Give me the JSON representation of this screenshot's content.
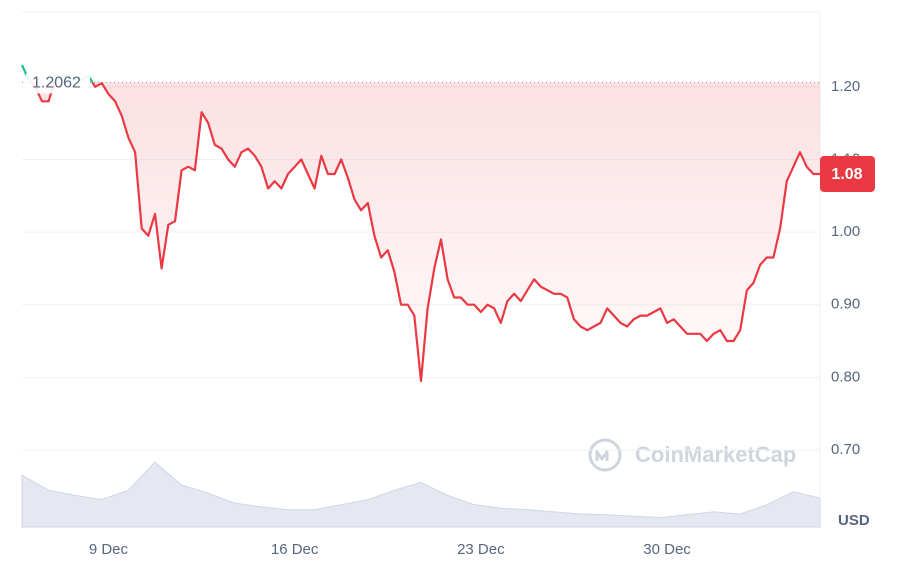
{
  "chart_data": {
    "type": "line",
    "series": [
      {
        "color": "#ea3943",
        "up_color": "#16c784",
        "values": [
          1.23,
          1.21,
          1.2,
          1.18,
          1.18,
          1.21,
          1.215,
          1.215,
          1.21,
          1.21,
          1.215,
          1.2,
          1.205,
          1.19,
          1.18,
          1.16,
          1.13,
          1.11,
          1.005,
          0.995,
          1.025,
          0.95,
          1.01,
          1.015,
          1.085,
          1.09,
          1.085,
          1.165,
          1.15,
          1.12,
          1.115,
          1.1,
          1.09,
          1.11,
          1.115,
          1.105,
          1.09,
          1.06,
          1.07,
          1.06,
          1.08,
          1.09,
          1.1,
          1.08,
          1.06,
          1.105,
          1.08,
          1.08,
          1.1,
          1.075,
          1.045,
          1.03,
          1.04,
          0.995,
          0.965,
          0.975,
          0.945,
          0.9,
          0.9,
          0.885,
          0.795,
          0.895,
          0.95,
          0.99,
          0.935,
          0.91,
          0.91,
          0.9,
          0.9,
          0.89,
          0.9,
          0.895,
          0.875,
          0.905,
          0.915,
          0.905,
          0.92,
          0.935,
          0.925,
          0.92,
          0.915,
          0.915,
          0.91,
          0.88,
          0.87,
          0.865,
          0.87,
          0.875,
          0.895,
          0.885,
          0.875,
          0.87,
          0.88,
          0.885,
          0.885,
          0.89,
          0.895,
          0.875,
          0.88,
          0.87,
          0.86,
          0.86,
          0.86,
          0.85,
          0.86,
          0.865,
          0.85,
          0.85,
          0.865,
          0.92,
          0.93,
          0.955,
          0.965,
          0.965,
          1.005,
          1.07,
          1.09,
          1.11,
          1.09,
          1.08,
          1.08
        ]
      }
    ],
    "xlim": [
      0,
      120
    ],
    "xticks": [
      {
        "value": 13,
        "label": "9 Dec"
      },
      {
        "value": 41,
        "label": "16 Dec"
      },
      {
        "value": 69,
        "label": "23 Dec"
      },
      {
        "value": 97,
        "label": "30 Dec"
      }
    ],
    "ylim": [
      0.594,
      1.303
    ],
    "yticks": [
      {
        "value": 0.7,
        "label": "0.70"
      },
      {
        "value": 0.8,
        "label": "0.80"
      },
      {
        "value": 0.9,
        "label": "0.90"
      },
      {
        "value": 1.0,
        "label": "1.00"
      },
      {
        "value": 1.1,
        "label": "1.10"
      },
      {
        "value": 1.2,
        "label": "1.20"
      }
    ],
    "grid": true,
    "reference": {
      "value": 1.2062,
      "label": "1.2062"
    },
    "last_price": 1.08,
    "currency": "USD",
    "watermark": "CoinMarketCap",
    "volume": {
      "color": "#cfd6e4",
      "ylim": [
        0,
        100
      ],
      "x": [
        0,
        4,
        8,
        12,
        16,
        20,
        24,
        28,
        32,
        36,
        40,
        44,
        48,
        52,
        56,
        60,
        64,
        68,
        72,
        76,
        80,
        84,
        88,
        92,
        96,
        100,
        104,
        108,
        112,
        116,
        120
      ],
      "values": [
        72,
        51,
        44,
        38,
        51,
        90,
        58,
        47,
        33,
        28,
        24,
        24,
        31,
        38,
        51,
        62,
        44,
        31,
        26,
        24,
        21,
        18,
        17,
        15,
        13,
        17,
        21,
        18,
        31,
        49,
        40
      ]
    }
  }
}
